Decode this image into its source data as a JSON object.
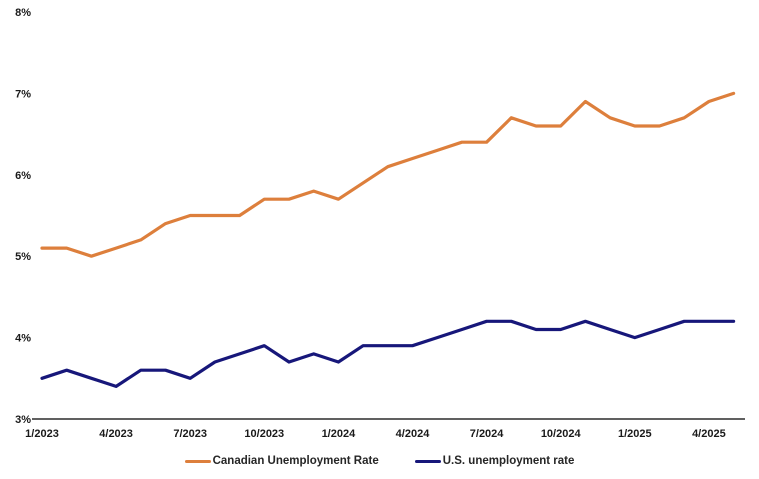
{
  "chart_data": {
    "type": "line",
    "title": "",
    "xlabel": "",
    "ylabel": "",
    "grid": false,
    "legend_position": "bottom",
    "ylim": [
      3,
      8
    ],
    "y_tick_labels": [
      "3%",
      "4%",
      "5%",
      "6%",
      "7%",
      "8%"
    ],
    "x_tick_labels": [
      "1/2023",
      "4/2023",
      "7/2023",
      "10/2023",
      "1/2024",
      "4/2024",
      "7/2024",
      "10/2024",
      "1/2025",
      "4/2025"
    ],
    "x_tick_month_indices": [
      0,
      3,
      6,
      9,
      12,
      15,
      18,
      21,
      24,
      27
    ],
    "x": [
      "1/2023",
      "2/2023",
      "3/2023",
      "4/2023",
      "5/2023",
      "6/2023",
      "7/2023",
      "8/2023",
      "9/2023",
      "10/2023",
      "11/2023",
      "12/2023",
      "1/2024",
      "2/2024",
      "3/2024",
      "4/2024",
      "5/2024",
      "6/2024",
      "7/2024",
      "8/2024",
      "9/2024",
      "10/2024",
      "11/2024",
      "12/2024",
      "1/2025",
      "2/2025",
      "3/2025",
      "4/2025",
      "5/2025"
    ],
    "series": [
      {
        "name": "Canadian Unemployment Rate",
        "color": "#DD7F3C",
        "values": [
          5.1,
          5.1,
          5.0,
          5.1,
          5.2,
          5.4,
          5.5,
          5.5,
          5.5,
          5.7,
          5.7,
          5.8,
          5.7,
          5.9,
          6.1,
          6.2,
          6.3,
          6.4,
          6.4,
          6.7,
          6.6,
          6.6,
          6.9,
          6.7,
          6.6,
          6.6,
          6.7,
          6.9,
          7.0
        ]
      },
      {
        "name": "U.S. unemployment rate",
        "color": "#17177A",
        "values": [
          3.5,
          3.6,
          3.5,
          3.4,
          3.6,
          3.6,
          3.5,
          3.7,
          3.8,
          3.9,
          3.7,
          3.8,
          3.7,
          3.9,
          3.9,
          3.9,
          4.0,
          4.1,
          4.2,
          4.2,
          4.1,
          4.1,
          4.2,
          4.1,
          4.0,
          4.1,
          4.2,
          4.2,
          4.2
        ]
      }
    ],
    "axis_color": "#000000",
    "tick_text_color": "#1a1a1a"
  },
  "legend": {
    "items": [
      {
        "label": "Canadian Unemployment Rate",
        "color": "#DD7F3C"
      },
      {
        "label": "U.S. unemployment rate",
        "color": "#17177A"
      }
    ]
  }
}
